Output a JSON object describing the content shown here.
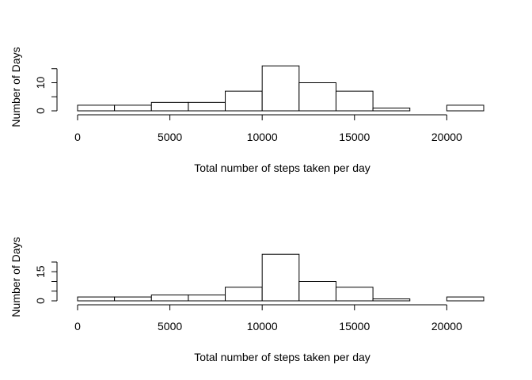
{
  "chart_data": [
    {
      "type": "bar",
      "title": "",
      "xlabel": "Total number of steps taken per day",
      "ylabel": "Number of Days",
      "bin_edges": [
        0,
        2000,
        4000,
        6000,
        8000,
        10000,
        12000,
        14000,
        16000,
        18000,
        20000,
        22000
      ],
      "values": [
        2,
        2,
        3,
        3,
        7,
        16,
        10,
        7,
        1,
        0,
        2
      ],
      "x_ticks": [
        0,
        5000,
        10000,
        15000,
        20000
      ],
      "x_tick_labels": [
        "0",
        "5000",
        "10000",
        "15000",
        "20000"
      ],
      "y_ticks": [
        0,
        5,
        10,
        15
      ],
      "y_tick_labels": [
        "0",
        "",
        "10",
        ""
      ],
      "xlim": [
        0,
        22000
      ],
      "ylim": [
        0,
        16
      ],
      "grid": false
    },
    {
      "type": "bar",
      "title": "",
      "xlabel": "Total number of steps taken per day",
      "ylabel": "Number of Days",
      "bin_edges": [
        0,
        2000,
        4000,
        6000,
        8000,
        10000,
        12000,
        14000,
        16000,
        18000,
        20000,
        22000
      ],
      "values": [
        2,
        2,
        3,
        3,
        7,
        24,
        10,
        7,
        1,
        0,
        2
      ],
      "x_ticks": [
        0,
        5000,
        10000,
        15000,
        20000
      ],
      "x_tick_labels": [
        "0",
        "5000",
        "10000",
        "15000",
        "20000"
      ],
      "y_ticks": [
        0,
        5,
        10,
        15,
        20
      ],
      "y_tick_labels": [
        "0",
        "",
        "",
        "15",
        ""
      ],
      "xlim": [
        0,
        22000
      ],
      "ylim": [
        0,
        24
      ],
      "grid": false
    }
  ]
}
